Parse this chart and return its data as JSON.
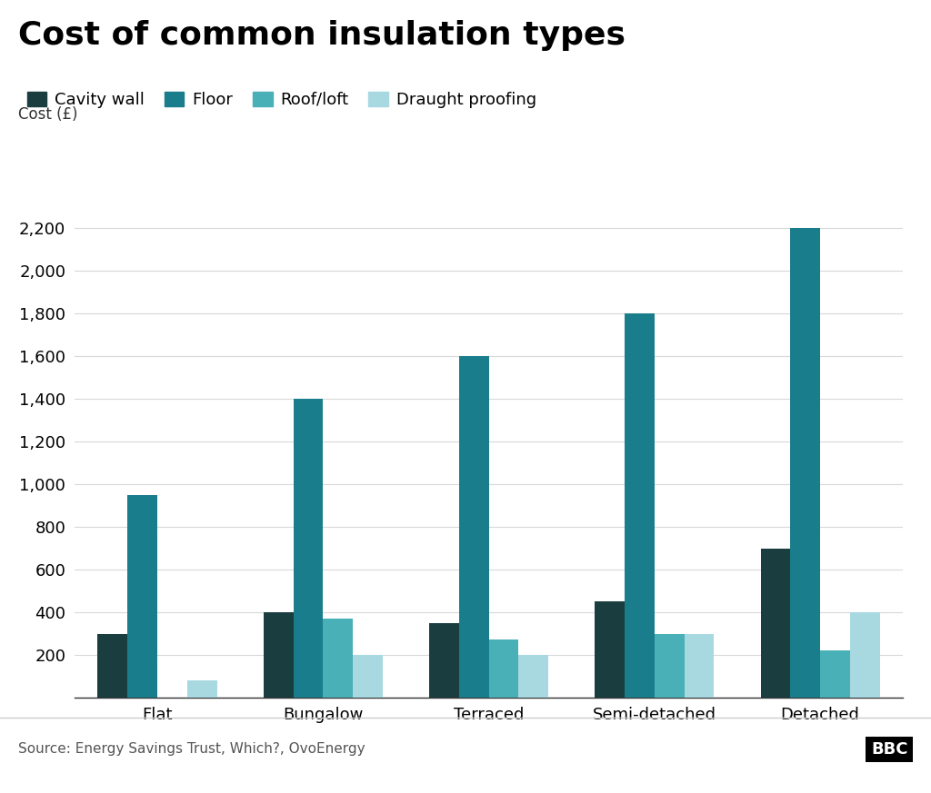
{
  "title": "Cost of common insulation types",
  "ylabel": "Cost (£)",
  "categories": [
    "Flat",
    "Bungalow",
    "Terraced",
    "Semi-detached",
    "Detached"
  ],
  "series": [
    {
      "name": "Cavity wall",
      "color": "#1a3d40",
      "values": [
        300,
        400,
        350,
        450,
        700
      ]
    },
    {
      "name": "Floor",
      "color": "#1a7d8c",
      "values": [
        950,
        1400,
        1600,
        1800,
        2200
      ]
    },
    {
      "name": "Roof/loft",
      "color": "#4ab0b8",
      "values": [
        0,
        370,
        275,
        300,
        220
      ]
    },
    {
      "name": "Draught proofing",
      "color": "#a8d8e0",
      "values": [
        80,
        200,
        200,
        300,
        400
      ]
    }
  ],
  "ylim": [
    0,
    2300
  ],
  "yticks": [
    0,
    200,
    400,
    600,
    800,
    1000,
    1200,
    1400,
    1600,
    1800,
    2000,
    2200
  ],
  "source": "Source: Energy Savings Trust, Which?, OvoEnergy",
  "background_color": "#ffffff",
  "title_fontsize": 26,
  "legend_fontsize": 13,
  "axis_label_fontsize": 12,
  "tick_fontsize": 13,
  "bar_width": 0.18,
  "source_fontsize": 11,
  "bbc_fontsize": 13
}
